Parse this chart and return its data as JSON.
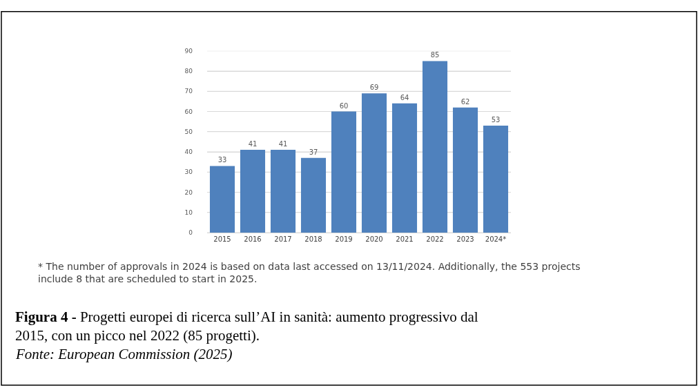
{
  "chart_data": {
    "type": "bar",
    "categories": [
      "2015",
      "2016",
      "2017",
      "2018",
      "2019",
      "2020",
      "2021",
      "2022",
      "2023",
      "2024*"
    ],
    "values": [
      33,
      41,
      41,
      37,
      60,
      69,
      64,
      85,
      62,
      53
    ],
    "color": "#4f81bd",
    "ylim": [
      0,
      90
    ],
    "yticks": [
      0,
      10,
      20,
      30,
      40,
      50,
      60,
      70,
      80,
      90
    ],
    "grid": "y",
    "data_labels": true,
    "annotations": [
      "* The number of approvals in 2024 is based on data last accessed on 13/11/2024. Additionally, the 553 projects include 8 that are scheduled to start in 2025.",
      "Figura 4 - Progetti europei di ricerca sull’AI in sanità: aumento progressivo dal 2015, con un picco nel 2022 (85 progetti).",
      "Fonte: European Commission (2025)"
    ]
  }
}
